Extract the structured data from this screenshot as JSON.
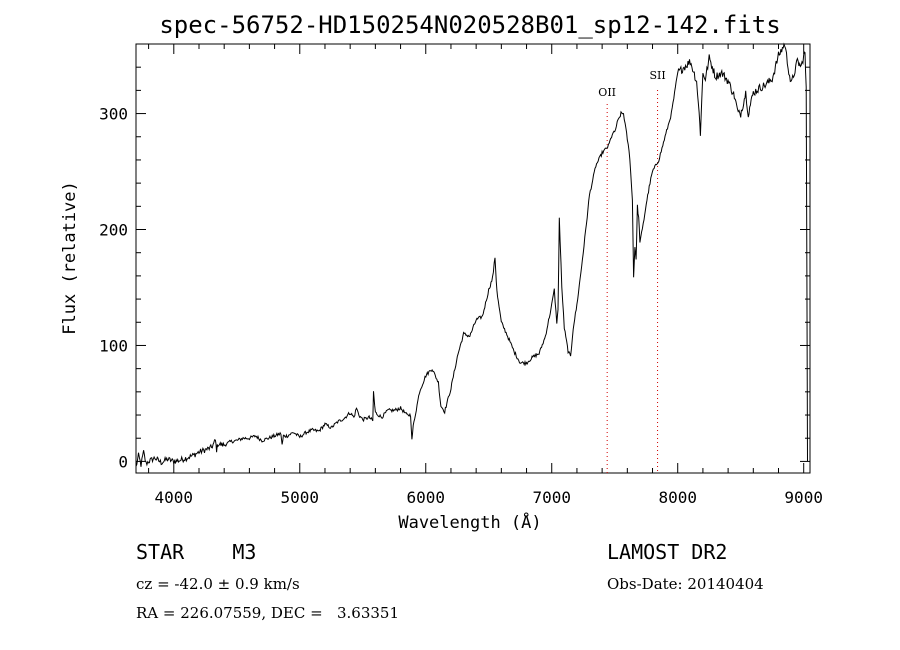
{
  "chart_data": {
    "type": "line",
    "title": "spec-56752-HD150254N020528B01_sp12-142.fits",
    "xlabel": "Wavelength (Å)",
    "ylabel": "Flux (relative)",
    "xlim": [
      3700,
      9050
    ],
    "ylim": [
      -10,
      360
    ],
    "xticks": [
      4000,
      5000,
      6000,
      7000,
      8000,
      9000
    ],
    "yticks": [
      0,
      100,
      200,
      300
    ],
    "grid": false,
    "series": [
      {
        "x": [
          3700,
          3720,
          3740,
          3760,
          3780,
          3800,
          3850,
          3900,
          3950,
          4000,
          4050,
          4100,
          4150,
          4200,
          4250,
          4300,
          4330,
          4340,
          4350,
          4400,
          4450,
          4500,
          4550,
          4600,
          4650,
          4700,
          4750,
          4800,
          4850,
          4860,
          4870,
          4900,
          4950,
          5000,
          5050,
          5100,
          5150,
          5200,
          5250,
          5300,
          5350,
          5400,
          5430,
          5450,
          5470,
          5500,
          5550,
          5580,
          5585,
          5600,
          5650,
          5700,
          5750,
          5800,
          5850,
          5880,
          5890,
          5900,
          5950,
          6000,
          6050,
          6100,
          6120,
          6150,
          6180,
          6200,
          6250,
          6300,
          6350,
          6400,
          6450,
          6500,
          6530,
          6550,
          6560,
          6570,
          6600,
          6650,
          6700,
          6750,
          6800,
          6850,
          6900,
          6950,
          7000,
          7020,
          7040,
          7050,
          7060,
          7080,
          7100,
          7130,
          7150,
          7170,
          7200,
          7250,
          7300,
          7350,
          7400,
          7450,
          7480,
          7500,
          7520,
          7550,
          7570,
          7600,
          7620,
          7640,
          7650,
          7660,
          7670,
          7680,
          7690,
          7700,
          7720,
          7750,
          7780,
          7800,
          7850,
          7900,
          7950,
          8000,
          8050,
          8100,
          8150,
          8170,
          8180,
          8190,
          8200,
          8220,
          8250,
          8300,
          8350,
          8400,
          8450,
          8480,
          8500,
          8540,
          8560,
          8600,
          8650,
          8700,
          8750,
          8800,
          8850,
          8870,
          8900,
          8950,
          8980,
          9000,
          9010,
          9020,
          9030
        ],
        "y": [
          -5,
          5,
          -3,
          8,
          -2,
          0,
          3,
          -1,
          2,
          0,
          1,
          3,
          5,
          8,
          10,
          12,
          18,
          10,
          15,
          14,
          17,
          18,
          20,
          20,
          22,
          18,
          20,
          22,
          24,
          14,
          22,
          22,
          25,
          21,
          25,
          27,
          26,
          32,
          29,
          34,
          37,
          42,
          38,
          46,
          40,
          36,
          38,
          35,
          60,
          42,
          38,
          44,
          44,
          46,
          40,
          40,
          18,
          30,
          60,
          74,
          80,
          68,
          48,
          43,
          55,
          63,
          90,
          110,
          108,
          122,
          125,
          148,
          158,
          176,
          155,
          142,
          120,
          108,
          95,
          85,
          85,
          90,
          93,
          108,
          135,
          148,
          120,
          130,
          210,
          150,
          115,
          95,
          90,
          115,
          135,
          180,
          230,
          255,
          266,
          272,
          282,
          284,
          292,
          300,
          300,
          278,
          262,
          225,
          160,
          185,
          175,
          220,
          210,
          190,
          200,
          222,
          240,
          250,
          260,
          280,
          300,
          335,
          340,
          345,
          328,
          300,
          283,
          310,
          335,
          330,
          348,
          332,
          335,
          328,
          315,
          300,
          300,
          318,
          300,
          318,
          322,
          325,
          330,
          350,
          360,
          345,
          325,
          345,
          340,
          350,
          352,
          320,
          0
        ]
      }
    ],
    "annotations": [
      {
        "label": "OII",
        "x": 7440
      },
      {
        "label": "SII",
        "x": 7840
      }
    ]
  },
  "info": {
    "object_type": "STAR    M3",
    "survey": "LAMOST DR2",
    "cz": "cz = -42.0 ± 0.9 km/s",
    "obs_date": "Obs-Date: 20140404",
    "radec": "RA = 226.07559, DEC =   3.63351"
  }
}
